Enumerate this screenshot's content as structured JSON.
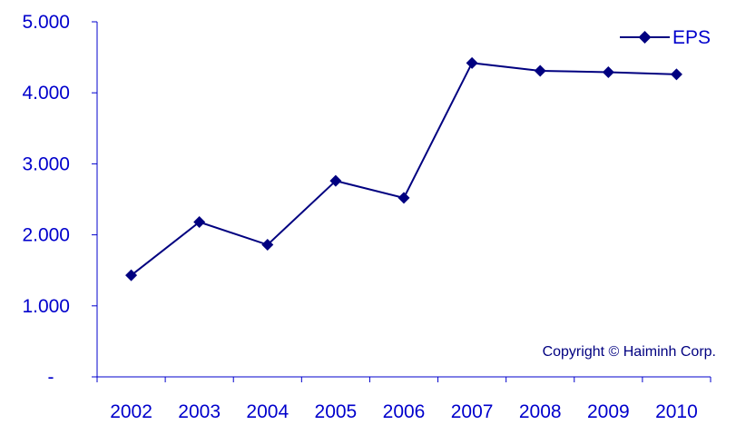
{
  "chart_data": {
    "type": "line",
    "categories": [
      "2002",
      "2003",
      "2004",
      "2005",
      "2006",
      "2007",
      "2008",
      "2009",
      "2010"
    ],
    "series": [
      {
        "name": "EPS",
        "values": [
          1430,
          2180,
          1860,
          2760,
          2520,
          4420,
          4310,
          4290,
          4260
        ]
      }
    ],
    "ylim": [
      0,
      5000
    ],
    "y_ticks": [
      {
        "value": 0,
        "label": "-"
      },
      {
        "value": 1000,
        "label": "1.000"
      },
      {
        "value": 2000,
        "label": "2.000"
      },
      {
        "value": 3000,
        "label": "3.000"
      },
      {
        "value": 4000,
        "label": "4.000"
      },
      {
        "value": 5000,
        "label": "5.000"
      }
    ],
    "grid": false,
    "legend": {
      "position": "top-right",
      "label": "EPS"
    },
    "annotation": "Copyright © Haiminh Corp.",
    "colors": {
      "line": "#000080",
      "marker": "#000080",
      "text": "#0000cc",
      "axis": "#0000cc"
    }
  }
}
